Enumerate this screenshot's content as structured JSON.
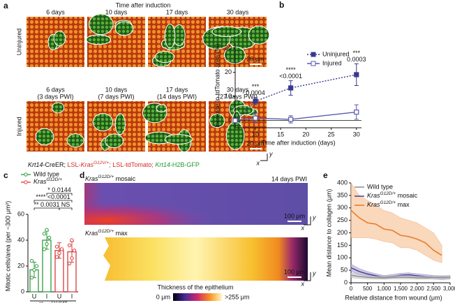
{
  "panel_a": {
    "label": "a",
    "title": "Time after induction",
    "rows": [
      {
        "name": "Uninjured",
        "columns": [
          [
            "6 days"
          ],
          [
            "10 days"
          ],
          [
            "17 days"
          ],
          [
            "30 days"
          ]
        ],
        "scale_bar": "20 μm"
      },
      {
        "name": "Injured",
        "columns": [
          [
            "6 days",
            "(3 days PWI)"
          ],
          [
            "10 days",
            "(7 days PWI)"
          ],
          [
            "17 days",
            "(14 days PWI)"
          ],
          [
            "30 days",
            "(27 days PWI)"
          ]
        ],
        "scale_bar": "20 μm"
      }
    ],
    "axes": [
      "y",
      "x"
    ],
    "caption": [
      {
        "text": "Krt14",
        "italic": true
      },
      "-CreER; ",
      {
        "text": "LSL-",
        "color": "#d42a2a"
      },
      {
        "text": "Kras",
        "italic": true,
        "color": "#d42a2a"
      },
      {
        "text": "G12V/+",
        "italic": true,
        "sup": true,
        "color": "#d42a2a"
      },
      {
        "text": "; LSL-tdTomato; ",
        "color": "#d42a2a"
      },
      {
        "text": "Krt14",
        "italic": true,
        "color": "#1f9a2f"
      },
      {
        "text": "-H2B-GFP",
        "color": "#1f9a2f"
      }
    ]
  },
  "panel_d": {
    "label": "d",
    "top": {
      "title": [
        {
          "text": "Kras",
          "italic": true
        },
        {
          "text": "G12D/+",
          "italic": true,
          "sup": true
        },
        " mosaic"
      ],
      "note": "14 days PWI",
      "scale_bar": "100 μm"
    },
    "bottom": {
      "title": [
        {
          "text": "Kras",
          "italic": true
        },
        {
          "text": "G12D/+",
          "italic": true,
          "sup": true
        },
        " max"
      ],
      "scale_bar": "100 μm"
    },
    "axes": [
      "y",
      "x"
    ],
    "colorbar": {
      "title": "Thickness of the epithelium",
      "min_label": "0 μm",
      "max_label": ">255 μm"
    }
  },
  "chart_data": [
    {
      "type": "line",
      "label": "b",
      "xlabel": "Time after induction (days)",
      "ylabel": "Increase in tdTomato area (%)",
      "x": [
        6,
        10,
        17,
        30
      ],
      "xlim": [
        6,
        31
      ],
      "xticks": [
        10,
        15,
        20,
        25,
        30
      ],
      "ylim": [
        -3,
        32
      ],
      "yticks": [
        0,
        10,
        20,
        30
      ],
      "series": [
        {
          "name": "Uninjured",
          "color": "#38388f",
          "marker": "filled",
          "dashed": true,
          "values": [
            0,
            8,
            13.5,
            19
          ],
          "errors": [
            0,
            1.5,
            3,
            4.5
          ],
          "significance": [
            null,
            [
              "***",
              "0.0004"
            ],
            [
              "****",
              "<0.0001"
            ],
            [
              "***",
              "0.0003"
            ]
          ]
        },
        {
          "name": "Injured",
          "color": "#5a5aad",
          "marker": "open",
          "dashed": false,
          "values": [
            0,
            1,
            0.5,
            3.5
          ],
          "errors": [
            0,
            2,
            1.5,
            3
          ]
        }
      ]
    },
    {
      "type": "bar",
      "label": "c",
      "ylabel": "Mitotic cells/area (per ~300 μm²)",
      "categories": [
        "U",
        "I",
        "U",
        "I"
      ],
      "group_label": [
        {
          "text": "Kras",
          "italic": true
        },
        {
          "text": "G12D/+",
          "italic": true,
          "sup": true
        }
      ],
      "ylim": [
        0,
        60
      ],
      "yticks": [
        0,
        20,
        40,
        60
      ],
      "series": [
        {
          "name": "Wild type",
          "color": "#2e9a3e",
          "values": [
            17,
            40,
            null,
            null
          ],
          "errors": [
            6,
            7,
            null,
            null
          ],
          "points": [
            [
              11,
              17,
              20,
              24
            ],
            [
              33,
              37,
              42,
              45,
              48
            ],
            null,
            null
          ]
        },
        {
          "name": [
            {
              "text": "Kras",
              "italic": true
            },
            {
              "text": "G12D/+",
              "italic": true,
              "sup": true
            }
          ],
          "color": "#d83c3c",
          "values": [
            null,
            null,
            32,
            31
          ],
          "errors": [
            null,
            null,
            6,
            8
          ],
          "points": [
            null,
            null,
            [
              27,
              30,
              33,
              35
            ],
            [
              22,
              26,
              32,
              36,
              40
            ]
          ]
        }
      ],
      "comparisons": [
        {
          "from": 1,
          "to": 3,
          "stars": "*",
          "p": "0.0144"
        },
        {
          "from": 0,
          "to": 3,
          "stars": "****",
          "p": "<0.0001"
        },
        {
          "from": 0,
          "to": 2,
          "stars": "**",
          "p": "0.0031"
        },
        {
          "from": 2,
          "to": 3,
          "p": "NS"
        }
      ]
    },
    {
      "type": "band",
      "label": "e",
      "xlabel": "Relative distance from wound (μm)",
      "ylabel": "Mean distance to collagen (μm)",
      "x": [
        0,
        250,
        500,
        750,
        1000,
        1250,
        1500,
        1750,
        2000,
        2250,
        2500,
        2750,
        3000
      ],
      "xlim": [
        0,
        3000
      ],
      "xticks": [
        0,
        500,
        {
          "value": 1000,
          "label": "1,000"
        },
        {
          "value": 1500,
          "label": "1,500"
        },
        {
          "value": 2000,
          "label": "2,000"
        },
        {
          "value": 2500,
          "label": "2,500"
        },
        {
          "value": 3000,
          "label": "3,000"
        }
      ],
      "ylim": [
        0,
        400
      ],
      "yticks": [
        0,
        50,
        100,
        150,
        200,
        250,
        300,
        350,
        400
      ],
      "series": [
        {
          "name": "Wild type",
          "color": "#8c8c8c",
          "band_color": "#d0d0d0",
          "values": [
            30,
            25,
            22,
            20,
            20,
            22,
            22,
            22,
            20,
            20,
            22,
            22,
            22
          ],
          "lower": [
            20,
            17,
            15,
            14,
            14,
            15,
            15,
            15,
            14,
            14,
            15,
            15,
            15
          ],
          "upper": [
            40,
            33,
            29,
            26,
            26,
            29,
            29,
            29,
            26,
            26,
            29,
            29,
            29
          ]
        },
        {
          "name": [
            {
              "text": "Kras",
              "italic": true
            },
            {
              "text": "G12D/+",
              "italic": true,
              "sup": true
            },
            " mosaic"
          ],
          "color": "#4b3f93",
          "band_color": "#b7b0dc",
          "values": [
            60,
            45,
            35,
            28,
            22,
            25,
            30,
            32,
            28,
            25,
            22,
            20,
            22
          ],
          "lower": [
            45,
            33,
            25,
            20,
            15,
            17,
            22,
            24,
            20,
            17,
            15,
            13,
            15
          ],
          "upper": [
            75,
            57,
            45,
            36,
            29,
            33,
            38,
            40,
            36,
            33,
            29,
            27,
            29
          ]
        },
        {
          "name": [
            {
              "text": "Kras",
              "italic": true
            },
            {
              "text": "G12D/+",
              "italic": true,
              "sup": true
            },
            " max"
          ],
          "color": "#e8772a",
          "band_color": "#f7c8a0",
          "values": [
            290,
            260,
            240,
            235,
            215,
            210,
            190,
            185,
            175,
            160,
            130,
            110,
            null
          ],
          "lower": [
            180,
            180,
            180,
            175,
            165,
            160,
            140,
            140,
            130,
            110,
            90,
            80,
            null
          ],
          "upper": [
            400,
            350,
            330,
            310,
            290,
            280,
            260,
            250,
            240,
            220,
            200,
            150,
            null
          ]
        }
      ]
    }
  ]
}
